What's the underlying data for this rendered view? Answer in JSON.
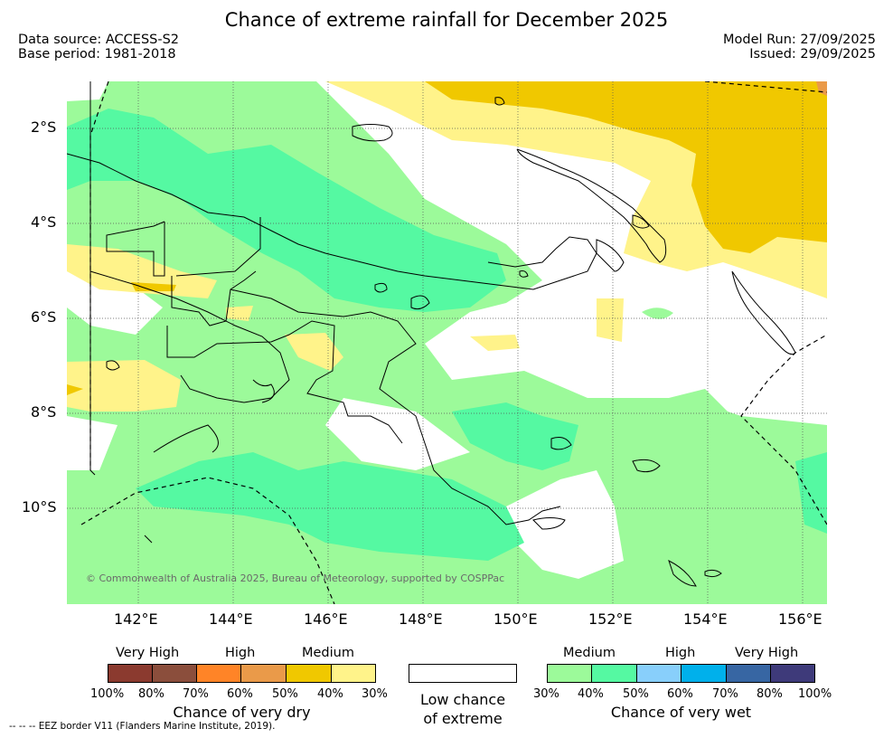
{
  "header": {
    "title": "Chance of extreme rainfall for December 2025",
    "data_source": "Data source: ACCESS-S2",
    "base_period": "Base period: 1981-2018",
    "model_run": "Model Run: 27/09/2025",
    "issued": "Issued: 29/09/2025"
  },
  "map": {
    "lat_labels": [
      "2°S",
      "4°S",
      "6°S",
      "8°S",
      "10°S"
    ],
    "lon_labels": [
      "142°E",
      "144°E",
      "146°E",
      "148°E",
      "150°E",
      "152°E",
      "154°E",
      "156°E"
    ],
    "copyright": "© Commonwealth of Australia 2025, Bureau of Meteorology, supported by COSPPac",
    "colors": {
      "very_dry_high": "#f0c800",
      "dry_medium": "#fff38a",
      "low": "#ffffff",
      "wet_medium": "#9cfa9a",
      "wet_medium_high": "#55f9a2",
      "ocean_line": "#000000"
    }
  },
  "legend": {
    "dry": {
      "headers": [
        "Very High",
        "High",
        "Medium"
      ],
      "ticks": [
        "100%",
        "80%",
        "70%",
        "60%",
        "50%",
        "40%",
        "30%"
      ],
      "colors": [
        "#8b3a2f",
        "#8b4e3c",
        "#ff8427",
        "#ea9a49",
        "#f0c800",
        "#fff38a"
      ],
      "caption": "Chance of very dry"
    },
    "low": {
      "caption_line1": "Low chance",
      "caption_line2": "of extreme",
      "color": "#ffffff"
    },
    "wet": {
      "headers": [
        "Medium",
        "High",
        "Very High"
      ],
      "ticks": [
        "30%",
        "40%",
        "50%",
        "60%",
        "70%",
        "80%",
        "100%"
      ],
      "colors": [
        "#9cfa9a",
        "#55f9a2",
        "#88cffb",
        "#00b0eb",
        "#3766a3",
        "#3e3a7a"
      ],
      "caption": "Chance of very wet"
    }
  },
  "footnote": "--  --  -- EEZ border V11 (Flanders Marine Institute, 2019)."
}
